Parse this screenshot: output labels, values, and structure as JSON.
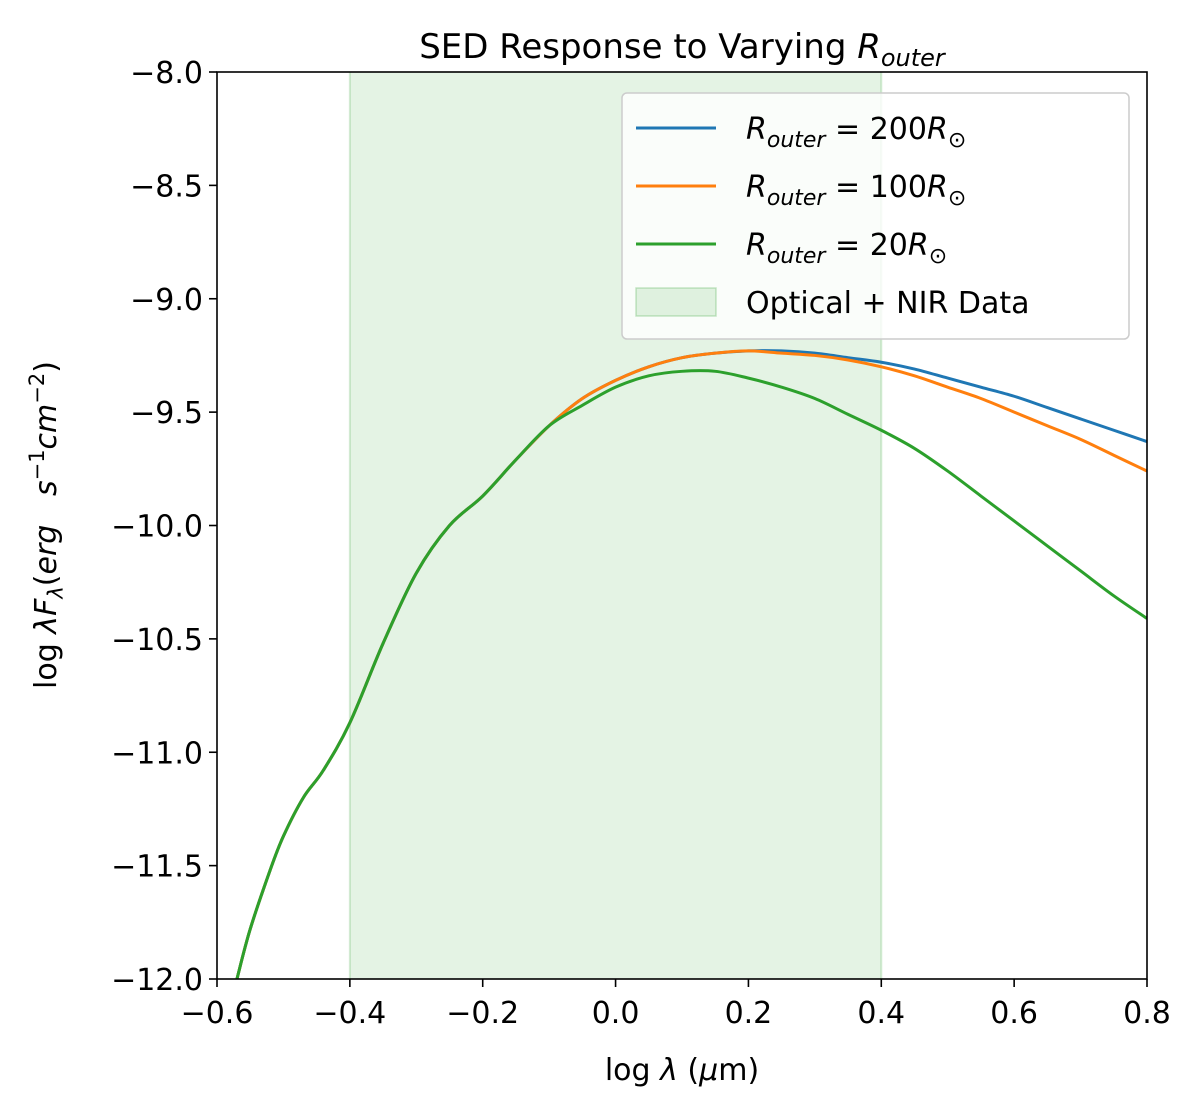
{
  "chart_data": {
    "type": "line",
    "title": {
      "main": "SED Response to Varying ",
      "symbol": "R",
      "subscript": "outer"
    },
    "xlabel": {
      "prefix": "log ",
      "symbol": "λ",
      "suffix_open": " (",
      "mu": "μ",
      "suffix_close": "m)"
    },
    "ylabel": {
      "prefix": "log ",
      "lambda": "λ",
      "F": "F",
      "F_sub": "λ",
      "open": "(",
      "erg": "erg",
      "gap": "   ",
      "s": "s",
      "s_sup": "−1",
      "cm": "cm",
      "cm_sup": "−2",
      "close": ")"
    },
    "xlim": [
      -0.6,
      0.8
    ],
    "ylim": [
      -12.0,
      -8.0
    ],
    "xticks": [
      -0.6,
      -0.4,
      -0.2,
      0.0,
      0.2,
      0.4,
      0.6,
      0.8
    ],
    "xtick_labels": [
      "−0.6",
      "−0.4",
      "−0.2",
      "0.0",
      "0.2",
      "0.4",
      "0.6",
      "0.8"
    ],
    "yticks": [
      -8.0,
      -8.5,
      -9.0,
      -9.5,
      -10.0,
      -10.5,
      -11.0,
      -11.5,
      -12.0
    ],
    "ytick_labels": [
      "−8.0",
      "−8.5",
      "−9.0",
      "−9.5",
      "−10.0",
      "−10.5",
      "−11.0",
      "−11.5",
      "−12.0"
    ],
    "shaded_region": {
      "x_start": -0.4,
      "x_end": 0.4,
      "color": "#2ca02c",
      "opacity": 0.13,
      "legend_label": "Optical + NIR Data"
    },
    "legend_placement": "top-right",
    "grid": false,
    "series": [
      {
        "name": "200",
        "legend_label": {
          "R": "R",
          "sub": "outer",
          "eq": " = ",
          "num": "200",
          "Rsun": "R",
          "sun_sub": "⊙"
        },
        "color": "#1f77b4",
        "x": [
          -0.57,
          -0.55,
          -0.52,
          -0.5,
          -0.47,
          -0.44,
          -0.4,
          -0.35,
          -0.3,
          -0.25,
          -0.2,
          -0.15,
          -0.1,
          -0.05,
          0.0,
          0.05,
          0.1,
          0.15,
          0.2,
          0.25,
          0.3,
          0.35,
          0.4,
          0.45,
          0.5,
          0.55,
          0.6,
          0.65,
          0.7,
          0.75,
          0.8
        ],
        "y": [
          -12.0,
          -11.78,
          -11.52,
          -11.37,
          -11.2,
          -11.08,
          -10.87,
          -10.52,
          -10.21,
          -10.0,
          -9.87,
          -9.71,
          -9.56,
          -9.44,
          -9.36,
          -9.3,
          -9.26,
          -9.24,
          -9.23,
          -9.23,
          -9.24,
          -9.26,
          -9.28,
          -9.31,
          -9.35,
          -9.39,
          -9.43,
          -9.48,
          -9.53,
          -9.58,
          -9.63
        ]
      },
      {
        "name": "100",
        "legend_label": {
          "R": "R",
          "sub": "outer",
          "eq": " = ",
          "num": "100",
          "Rsun": "R",
          "sun_sub": "⊙"
        },
        "color": "#ff7f0e",
        "x": [
          -0.57,
          -0.55,
          -0.52,
          -0.5,
          -0.47,
          -0.44,
          -0.4,
          -0.35,
          -0.3,
          -0.25,
          -0.2,
          -0.15,
          -0.1,
          -0.05,
          0.0,
          0.05,
          0.1,
          0.15,
          0.2,
          0.25,
          0.3,
          0.35,
          0.4,
          0.45,
          0.5,
          0.55,
          0.6,
          0.65,
          0.7,
          0.75,
          0.8
        ],
        "y": [
          -12.0,
          -11.78,
          -11.52,
          -11.37,
          -11.2,
          -11.08,
          -10.87,
          -10.52,
          -10.21,
          -10.0,
          -9.87,
          -9.71,
          -9.56,
          -9.44,
          -9.36,
          -9.3,
          -9.26,
          -9.24,
          -9.23,
          -9.24,
          -9.25,
          -9.27,
          -9.3,
          -9.34,
          -9.39,
          -9.44,
          -9.5,
          -9.56,
          -9.62,
          -9.69,
          -9.76
        ]
      },
      {
        "name": "20",
        "legend_label": {
          "R": "R",
          "sub": "outer",
          "eq": " = ",
          "num": "20",
          "Rsun": "R",
          "sun_sub": "⊙"
        },
        "color": "#2ca02c",
        "x": [
          -0.57,
          -0.55,
          -0.52,
          -0.5,
          -0.47,
          -0.44,
          -0.4,
          -0.35,
          -0.3,
          -0.25,
          -0.2,
          -0.15,
          -0.1,
          -0.05,
          0.0,
          0.05,
          0.1,
          0.15,
          0.2,
          0.25,
          0.3,
          0.35,
          0.4,
          0.45,
          0.5,
          0.55,
          0.6,
          0.65,
          0.7,
          0.75,
          0.8
        ],
        "y": [
          -12.0,
          -11.78,
          -11.52,
          -11.37,
          -11.2,
          -11.08,
          -10.87,
          -10.52,
          -10.21,
          -10.0,
          -9.87,
          -9.71,
          -9.56,
          -9.47,
          -9.39,
          -9.34,
          -9.32,
          -9.32,
          -9.35,
          -9.39,
          -9.44,
          -9.51,
          -9.58,
          -9.66,
          -9.76,
          -9.87,
          -9.98,
          -10.09,
          -10.2,
          -10.31,
          -10.41
        ]
      }
    ]
  }
}
